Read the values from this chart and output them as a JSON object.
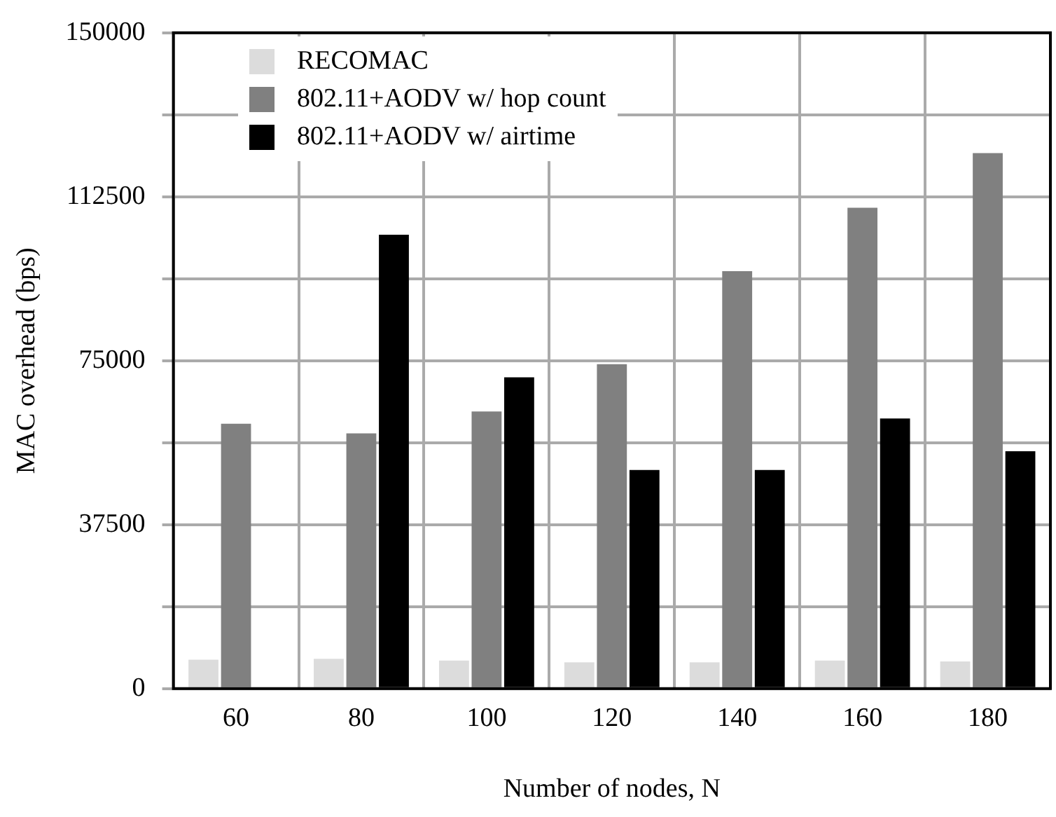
{
  "chart_data": {
    "type": "bar",
    "xlabel": "Number of nodes, N",
    "ylabel": "MAC overhead (bps)",
    "categories": [
      "60",
      "80",
      "100",
      "120",
      "140",
      "160",
      "180"
    ],
    "series": [
      {
        "name": "RECOMAC",
        "color": "#dcdcdc",
        "values": [
          6600,
          6800,
          6400,
          6000,
          6000,
          6400,
          6200
        ]
      },
      {
        "name": "802.11+AODV w/ hop count",
        "color": "#808080",
        "values": [
          60600,
          58400,
          63400,
          74200,
          95500,
          110000,
          122500
        ]
      },
      {
        "name": "802.11+AODV w/ airtime",
        "color": "#000000",
        "values": [
          null,
          103800,
          71200,
          50000,
          50000,
          61800,
          54300
        ]
      }
    ],
    "ylim": [
      0,
      150000
    ],
    "yticks": [
      0,
      {
        "value": 18750,
        "label": null
      },
      37500,
      {
        "value": 56250,
        "label": null
      },
      75000,
      {
        "value": 93750,
        "label": null
      },
      112500,
      {
        "value": 131250,
        "label": null
      },
      150000
    ],
    "grid": true,
    "legend": "top left"
  }
}
